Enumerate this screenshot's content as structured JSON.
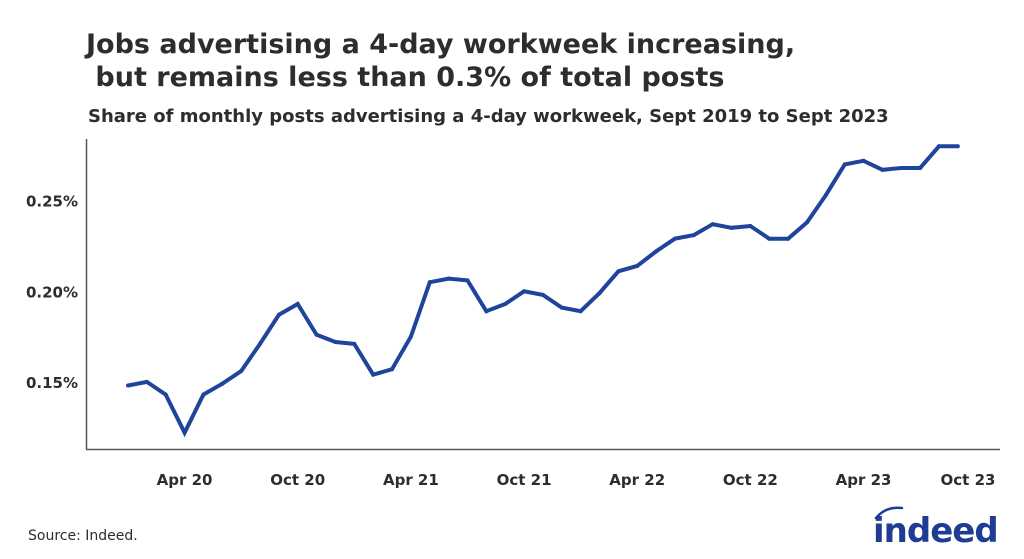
{
  "title": "Jobs advertising a 4-day workweek increasing,\n but remains less than 0.3% of total posts",
  "subtitle": "Share of monthly posts advertising a 4-day workweek, Sept 2019 to Sept 2023",
  "source": "Source: Indeed.",
  "logo_text": "indeed",
  "colors": {
    "line": "#1f449c",
    "axis": "#555555",
    "text": "#2d2d2d",
    "logo": "#1f3c94"
  },
  "chart_data": {
    "type": "line",
    "title": "Share of monthly posts advertising a 4-day workweek, Sept 2019 to Sept 2023",
    "xlabel": "",
    "ylabel": "",
    "ylim": [
      0.113,
      0.284
    ],
    "y_ticks": [
      0.15,
      0.2,
      0.25
    ],
    "y_tick_labels": [
      "0.15%",
      "0.20%",
      "0.25%"
    ],
    "x_tick_labels": [
      "Apr 20",
      "Oct 20",
      "Apr 21",
      "Oct 21",
      "Apr 22",
      "Oct 22",
      "Apr 23",
      "Oct 23"
    ],
    "x_tick_months": [
      "2020-04",
      "2020-10",
      "2021-04",
      "2021-10",
      "2022-04",
      "2022-10",
      "2023-04",
      "2023-10"
    ],
    "grid": false,
    "x": [
      "2020-01",
      "2020-02",
      "2020-03",
      "2020-04",
      "2020-05",
      "2020-06",
      "2020-07",
      "2020-08",
      "2020-09",
      "2020-10",
      "2020-11",
      "2020-12",
      "2021-01",
      "2021-02",
      "2021-03",
      "2021-04",
      "2021-05",
      "2021-06",
      "2021-07",
      "2021-08",
      "2021-09",
      "2021-10",
      "2021-11",
      "2021-12",
      "2022-01",
      "2022-02",
      "2022-03",
      "2022-04",
      "2022-05",
      "2022-06",
      "2022-07",
      "2022-08",
      "2022-09",
      "2022-10",
      "2022-11",
      "2022-12",
      "2023-01",
      "2023-02",
      "2023-03",
      "2023-04",
      "2023-05",
      "2023-06",
      "2023-07",
      "2023-08",
      "2023-09"
    ],
    "series": [
      {
        "values": [
          0.148,
          0.15,
          0.143,
          0.122,
          0.143,
          0.149,
          0.156,
          0.171,
          0.187,
          0.193,
          0.176,
          0.172,
          0.171,
          0.154,
          0.157,
          0.175,
          0.205,
          0.207,
          0.206,
          0.189,
          0.193,
          0.2,
          0.198,
          0.191,
          0.189,
          0.199,
          0.211,
          0.214,
          0.222,
          0.229,
          0.231,
          0.237,
          0.235,
          0.236,
          0.229,
          0.229,
          0.238,
          0.253,
          0.27,
          0.272,
          0.267,
          0.268,
          0.268,
          0.28,
          0.28
        ]
      }
    ]
  }
}
